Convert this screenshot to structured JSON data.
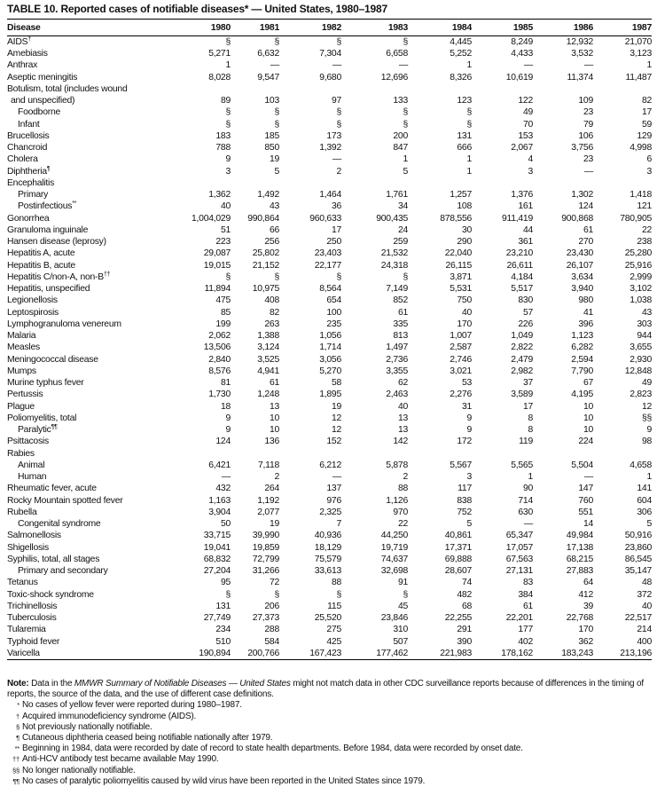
{
  "title": "TABLE 10. Reported cases of notifiable diseases* — United States, 1980–1987",
  "columns": [
    "Disease",
    "1980",
    "1981",
    "1982",
    "1983",
    "1984",
    "1985",
    "1986",
    "1987"
  ],
  "rows": [
    {
      "name": "AIDS",
      "sup": "†",
      "indent": 0,
      "values": [
        "§",
        "§",
        "§",
        "§",
        "4,445",
        "8,249",
        "12,932",
        "21,070"
      ]
    },
    {
      "name": "Amebiasis",
      "sup": "",
      "indent": 0,
      "values": [
        "5,271",
        "6,632",
        "7,304",
        "6,658",
        "5,252",
        "4,433",
        "3,532",
        "3,123"
      ]
    },
    {
      "name": "Anthrax",
      "sup": "",
      "indent": 0,
      "values": [
        "1",
        "—",
        "—",
        "—",
        "1",
        "—",
        "—",
        "1"
      ]
    },
    {
      "name": "Aseptic meningitis",
      "sup": "",
      "indent": 0,
      "values": [
        "8,028",
        "9,547",
        "9,680",
        "12,696",
        "8,326",
        "10,619",
        "11,374",
        "11,487"
      ]
    },
    {
      "name": "Botulism, total (includes wound",
      "sup": "",
      "indent": 0,
      "values": [
        "",
        "",
        "",
        "",
        "",
        "",
        "",
        ""
      ]
    },
    {
      "name": "and unspecified)",
      "sup": "",
      "indent": 1,
      "values": [
        "89",
        "103",
        "97",
        "133",
        "123",
        "122",
        "109",
        "82"
      ]
    },
    {
      "name": "Foodborne",
      "sup": "",
      "indent": 2,
      "values": [
        "§",
        "§",
        "§",
        "§",
        "§",
        "49",
        "23",
        "17"
      ]
    },
    {
      "name": "Infant",
      "sup": "",
      "indent": 2,
      "values": [
        "§",
        "§",
        "§",
        "§",
        "§",
        "70",
        "79",
        "59"
      ]
    },
    {
      "name": "Brucellosis",
      "sup": "",
      "indent": 0,
      "values": [
        "183",
        "185",
        "173",
        "200",
        "131",
        "153",
        "106",
        "129"
      ]
    },
    {
      "name": "Chancroid",
      "sup": "",
      "indent": 0,
      "values": [
        "788",
        "850",
        "1,392",
        "847",
        "666",
        "2,067",
        "3,756",
        "4,998"
      ]
    },
    {
      "name": "Cholera",
      "sup": "",
      "indent": 0,
      "values": [
        "9",
        "19",
        "—",
        "1",
        "1",
        "4",
        "23",
        "6"
      ]
    },
    {
      "name": "Diphtheria",
      "sup": "¶",
      "indent": 0,
      "values": [
        "3",
        "5",
        "2",
        "5",
        "1",
        "3",
        "—",
        "3"
      ]
    },
    {
      "name": "Encephalitis",
      "sup": "",
      "indent": 0,
      "values": [
        "",
        "",
        "",
        "",
        "",
        "",
        "",
        ""
      ]
    },
    {
      "name": "Primary",
      "sup": "",
      "indent": 2,
      "values": [
        "1,362",
        "1,492",
        "1,464",
        "1,761",
        "1,257",
        "1,376",
        "1,302",
        "1,418"
      ]
    },
    {
      "name": "Postinfectious",
      "sup": "**",
      "indent": 2,
      "values": [
        "40",
        "43",
        "36",
        "34",
        "108",
        "161",
        "124",
        "121"
      ]
    },
    {
      "name": "Gonorrhea",
      "sup": "",
      "indent": 0,
      "values": [
        "1,004,029",
        "990,864",
        "960,633",
        "900,435",
        "878,556",
        "911,419",
        "900,868",
        "780,905"
      ]
    },
    {
      "name": "Granuloma inguinale",
      "sup": "",
      "indent": 0,
      "values": [
        "51",
        "66",
        "17",
        "24",
        "30",
        "44",
        "61",
        "22"
      ]
    },
    {
      "name": "Hansen disease (leprosy)",
      "sup": "",
      "indent": 0,
      "values": [
        "223",
        "256",
        "250",
        "259",
        "290",
        "361",
        "270",
        "238"
      ]
    },
    {
      "name": "Hepatitis A, acute",
      "sup": "",
      "indent": 0,
      "values": [
        "29,087",
        "25,802",
        "23,403",
        "21,532",
        "22,040",
        "23,210",
        "23,430",
        "25,280"
      ]
    },
    {
      "name": "Hepatitis B, acute",
      "sup": "",
      "indent": 0,
      "values": [
        "19,015",
        "21,152",
        "22,177",
        "24,318",
        "26,115",
        "26,611",
        "26,107",
        "25,916"
      ]
    },
    {
      "name": "Hepatitis C/non-A, non-B",
      "sup": "††",
      "indent": 0,
      "values": [
        "§",
        "§",
        "§",
        "§",
        "3,871",
        "4,184",
        "3,634",
        "2,999"
      ]
    },
    {
      "name": "Hepatitis, unspecified",
      "sup": "",
      "indent": 0,
      "values": [
        "11,894",
        "10,975",
        "8,564",
        "7,149",
        "5,531",
        "5,517",
        "3,940",
        "3,102"
      ]
    },
    {
      "name": "Legionellosis",
      "sup": "",
      "indent": 0,
      "values": [
        "475",
        "408",
        "654",
        "852",
        "750",
        "830",
        "980",
        "1,038"
      ]
    },
    {
      "name": "Leptospirosis",
      "sup": "",
      "indent": 0,
      "values": [
        "85",
        "82",
        "100",
        "61",
        "40",
        "57",
        "41",
        "43"
      ]
    },
    {
      "name": "Lymphogranuloma venereum",
      "sup": "",
      "indent": 0,
      "values": [
        "199",
        "263",
        "235",
        "335",
        "170",
        "226",
        "396",
        "303"
      ]
    },
    {
      "name": "Malaria",
      "sup": "",
      "indent": 0,
      "values": [
        "2,062",
        "1,388",
        "1,056",
        "813",
        "1,007",
        "1,049",
        "1,123",
        "944"
      ]
    },
    {
      "name": "Measles",
      "sup": "",
      "indent": 0,
      "values": [
        "13,506",
        "3,124",
        "1,714",
        "1,497",
        "2,587",
        "2,822",
        "6,282",
        "3,655"
      ]
    },
    {
      "name": "Meningococcal disease",
      "sup": "",
      "indent": 0,
      "values": [
        "2,840",
        "3,525",
        "3,056",
        "2,736",
        "2,746",
        "2,479",
        "2,594",
        "2,930"
      ]
    },
    {
      "name": "Mumps",
      "sup": "",
      "indent": 0,
      "values": [
        "8,576",
        "4,941",
        "5,270",
        "3,355",
        "3,021",
        "2,982",
        "7,790",
        "12,848"
      ]
    },
    {
      "name": "Murine typhus fever",
      "sup": "",
      "indent": 0,
      "values": [
        "81",
        "61",
        "58",
        "62",
        "53",
        "37",
        "67",
        "49"
      ]
    },
    {
      "name": "Pertussis",
      "sup": "",
      "indent": 0,
      "values": [
        "1,730",
        "1,248",
        "1,895",
        "2,463",
        "2,276",
        "3,589",
        "4,195",
        "2,823"
      ]
    },
    {
      "name": "Plague",
      "sup": "",
      "indent": 0,
      "values": [
        "18",
        "13",
        "19",
        "40",
        "31",
        "17",
        "10",
        "12"
      ]
    },
    {
      "name": "Poliomyelitis, total",
      "sup": "",
      "indent": 0,
      "values": [
        "9",
        "10",
        "12",
        "13",
        "9",
        "8",
        "10",
        "§§"
      ]
    },
    {
      "name": "Paralytic",
      "sup": "¶¶",
      "indent": 2,
      "values": [
        "9",
        "10",
        "12",
        "13",
        "9",
        "8",
        "10",
        "9"
      ]
    },
    {
      "name": "Psittacosis",
      "sup": "",
      "indent": 0,
      "values": [
        "124",
        "136",
        "152",
        "142",
        "172",
        "119",
        "224",
        "98"
      ]
    },
    {
      "name": "Rabies",
      "sup": "",
      "indent": 0,
      "values": [
        "",
        "",
        "",
        "",
        "",
        "",
        "",
        ""
      ]
    },
    {
      "name": "Animal",
      "sup": "",
      "indent": 2,
      "values": [
        "6,421",
        "7,118",
        "6,212",
        "5,878",
        "5,567",
        "5,565",
        "5,504",
        "4,658"
      ]
    },
    {
      "name": "Human",
      "sup": "",
      "indent": 2,
      "values": [
        "—",
        "2",
        "—",
        "2",
        "3",
        "1",
        "—",
        "1"
      ]
    },
    {
      "name": "Rheumatic fever, acute",
      "sup": "",
      "indent": 0,
      "values": [
        "432",
        "264",
        "137",
        "88",
        "117",
        "90",
        "147",
        "141"
      ]
    },
    {
      "name": "Rocky Mountain spotted fever",
      "sup": "",
      "indent": 0,
      "values": [
        "1,163",
        "1,192",
        "976",
        "1,126",
        "838",
        "714",
        "760",
        "604"
      ]
    },
    {
      "name": "Rubella",
      "sup": "",
      "indent": 0,
      "values": [
        "3,904",
        "2,077",
        "2,325",
        "970",
        "752",
        "630",
        "551",
        "306"
      ]
    },
    {
      "name": "Congenital syndrome",
      "sup": "",
      "indent": 2,
      "values": [
        "50",
        "19",
        "7",
        "22",
        "5",
        "—",
        "14",
        "5"
      ]
    },
    {
      "name": "Salmonellosis",
      "sup": "",
      "indent": 0,
      "values": [
        "33,715",
        "39,990",
        "40,936",
        "44,250",
        "40,861",
        "65,347",
        "49,984",
        "50,916"
      ]
    },
    {
      "name": "Shigellosis",
      "sup": "",
      "indent": 0,
      "values": [
        "19,041",
        "19,859",
        "18,129",
        "19,719",
        "17,371",
        "17,057",
        "17,138",
        "23,860"
      ]
    },
    {
      "name": "Syphilis, total, all stages",
      "sup": "",
      "indent": 0,
      "values": [
        "68,832",
        "72,799",
        "75,579",
        "74,637",
        "69,888",
        "67,563",
        "68,215",
        "86,545"
      ]
    },
    {
      "name": "Primary and secondary",
      "sup": "",
      "indent": 2,
      "values": [
        "27,204",
        "31,266",
        "33,613",
        "32,698",
        "28,607",
        "27,131",
        "27,883",
        "35,147"
      ]
    },
    {
      "name": "Tetanus",
      "sup": "",
      "indent": 0,
      "values": [
        "95",
        "72",
        "88",
        "91",
        "74",
        "83",
        "64",
        "48"
      ]
    },
    {
      "name": "Toxic-shock syndrome",
      "sup": "",
      "indent": 0,
      "values": [
        "§",
        "§",
        "§",
        "§",
        "482",
        "384",
        "412",
        "372"
      ]
    },
    {
      "name": "Trichinellosis",
      "sup": "",
      "indent": 0,
      "values": [
        "131",
        "206",
        "115",
        "45",
        "68",
        "61",
        "39",
        "40"
      ]
    },
    {
      "name": "Tuberculosis",
      "sup": "",
      "indent": 0,
      "values": [
        "27,749",
        "27,373",
        "25,520",
        "23,846",
        "22,255",
        "22,201",
        "22,768",
        "22,517"
      ]
    },
    {
      "name": "Tularemia",
      "sup": "",
      "indent": 0,
      "values": [
        "234",
        "288",
        "275",
        "310",
        "291",
        "177",
        "170",
        "214"
      ]
    },
    {
      "name": "Typhoid fever",
      "sup": "",
      "indent": 0,
      "values": [
        "510",
        "584",
        "425",
        "507",
        "390",
        "402",
        "362",
        "400"
      ]
    },
    {
      "name": "Varicella",
      "sup": "",
      "indent": 0,
      "values": [
        "190,894",
        "200,766",
        "167,423",
        "177,462",
        "221,983",
        "178,162",
        "183,243",
        "213,196"
      ]
    }
  ],
  "note": {
    "label": "Note:",
    "text_before": " Data in the ",
    "italic": "MMWR Summary of Notifiable Diseases — United States",
    "text_after": " might not match data in other CDC surveillance reports because of differences in the timing of reports, the source of the data, and the use of different case definitions."
  },
  "footnotes": [
    {
      "mark": "*",
      "text": "No cases of yellow fever were reported during 1980–1987."
    },
    {
      "mark": "†",
      "text": "Acquired immunodeficiency syndrome (AIDS)."
    },
    {
      "mark": "§",
      "text": "Not previously nationally notifiable."
    },
    {
      "mark": "¶",
      "text": "Cutaneous diphtheria ceased being notifiable nationally after 1979."
    },
    {
      "mark": "**",
      "text": "Beginning in 1984, data were recorded by date of record to state health departments.  Before 1984, data were recorded by onset date."
    },
    {
      "mark": "††",
      "text": "Anti-HCV antibody test became available May 1990."
    },
    {
      "mark": "§§",
      "text": "No longer nationally notifiable."
    },
    {
      "mark": "¶¶",
      "text": "No cases of paralytic poliomyelitis caused by wild virus have been reported in the United States since 1979."
    }
  ]
}
